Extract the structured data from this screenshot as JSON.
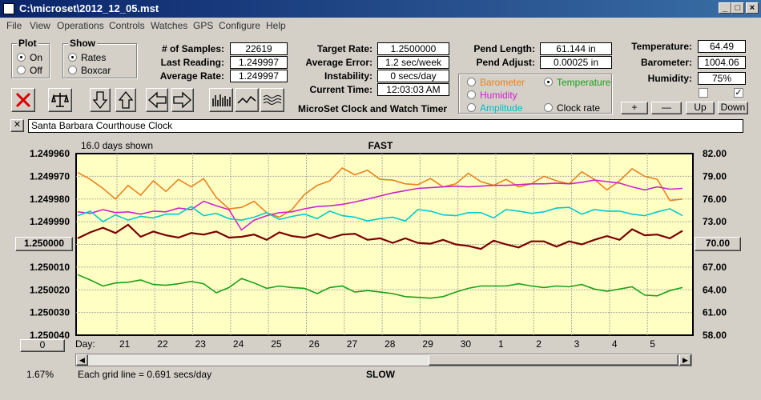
{
  "window": {
    "title": "C:\\microset\\2012_12_05.mst"
  },
  "menu": [
    "File",
    "View",
    "Operations",
    "Controls",
    "Watches",
    "GPS",
    "Configure",
    "Help"
  ],
  "plot_group": {
    "title": "Plot",
    "on": "On",
    "off": "Off",
    "selected": "On"
  },
  "show_group": {
    "title": "Show",
    "rates": "Rates",
    "boxcar": "Boxcar",
    "selected": "Rates"
  },
  "stats": {
    "samples_label": "# of Samples:",
    "samples": "22619",
    "last_label": "Last Reading:",
    "last": "1.249997",
    "avg_label": "Average Rate:",
    "avg": "1.249997",
    "target_label": "Target Rate:",
    "target": "1.2500000",
    "avgerr_label": "Average Error:",
    "avgerr": "1.2 sec/week",
    "instab_label": "Instability:",
    "instab": "0 secs/day",
    "time_label": "Current Time:",
    "time": "12:03:03 AM",
    "pend_len_label": "Pend Length:",
    "pend_len": "61.144 in",
    "pend_adj_label": "Pend Adjust:",
    "pend_adj": "0.00025 in",
    "temp_label": "Temperature:",
    "temp": "64.49",
    "baro_label": "Barometer:",
    "baro": "1004.06",
    "hum_label": "Humidity:",
    "hum": "75%"
  },
  "app_caption": "MicroSet Clock and Watch Timer",
  "sensor_select": {
    "barometer": "Barometer",
    "temperature": "Temperature",
    "humidity": "Humidity",
    "amplitude": "Amplitude",
    "clock_rate": "Clock rate",
    "selected": "Temperature",
    "colors": {
      "barometer": "#e8821e",
      "temperature": "#1aa01a",
      "humidity": "#cc22cc",
      "amplitude": "#00cccc",
      "clock_rate": "#000000"
    }
  },
  "sensor_buttons": {
    "plus": "+",
    "minus": "—",
    "up": "Up",
    "down": "Down"
  },
  "checkboxes": {
    "left": "",
    "right": "✓"
  },
  "clock_name": "Santa Barbara Courthouse Clock",
  "chart_data": {
    "type": "line",
    "title_top": "FAST",
    "title_bottom": "SLOW",
    "days_shown": "16.0 days shown",
    "grid_note": "Each grid line = 0.691 secs/day",
    "percent": "1.67%",
    "day_label": "Day:",
    "left_axis": [
      "1.249960",
      "1.249970",
      "1.249980",
      "1.249990",
      "1.250000",
      "1.250010",
      "1.250020",
      "1.250030",
      "1.250040"
    ],
    "right_axis": [
      "82.00",
      "79.00",
      "76.00",
      "73.00",
      "70.00",
      "67.00",
      "64.00",
      "61.00",
      "58.00"
    ],
    "left_center_button": "1.250000",
    "right_center_button": "70.00",
    "bottom_left_button": "0",
    "days": [
      "21",
      "22",
      "23",
      "24",
      "25",
      "26",
      "27",
      "28",
      "29",
      "30",
      "1",
      "2",
      "3",
      "4",
      "5"
    ],
    "rate_range": [
      1.24996,
      1.25004
    ],
    "temp_range": [
      58,
      82
    ],
    "series": [
      {
        "name": "Barometer",
        "color": "#e8821e",
        "values": [
          79.5,
          78.6,
          77.4,
          76.0,
          77.8,
          76.5,
          78.4,
          77.0,
          78.6,
          77.6,
          78.7,
          76.2,
          74.7,
          74.9,
          75.7,
          74.2,
          73.6,
          74.6,
          76.6,
          77.8,
          78.4,
          80.1,
          79.2,
          79.8,
          78.6,
          78.5,
          78.0,
          77.9,
          78.7,
          77.6,
          78.0,
          79.4,
          78.3,
          77.8,
          78.6,
          77.6,
          78.0,
          79.0,
          78.4,
          78.0,
          79.6,
          78.6,
          77.2,
          78.4,
          80.0,
          79.0,
          78.6,
          75.8,
          76.0
        ]
      },
      {
        "name": "Temperature",
        "color": "#1aa01a",
        "values": [
          66.0,
          65.3,
          64.5,
          64.9,
          65.0,
          65.3,
          64.7,
          64.6,
          64.8,
          65.1,
          64.8,
          63.6,
          64.3,
          65.5,
          64.9,
          64.2,
          64.5,
          64.3,
          64.2,
          63.5,
          64.3,
          64.5,
          63.7,
          63.9,
          63.7,
          63.5,
          63.1,
          63.0,
          62.9,
          63.1,
          63.7,
          64.2,
          64.5,
          64.5,
          64.5,
          64.8,
          64.5,
          64.3,
          64.5,
          64.4,
          64.7,
          64.1,
          63.8,
          64.1,
          64.4,
          63.3,
          63.2,
          63.9,
          64.3
        ]
      },
      {
        "name": "Humidity",
        "color": "#cc22cc",
        "values": [
          74.3,
          74.1,
          74.6,
          74.2,
          74.3,
          74.0,
          74.4,
          74.3,
          74.8,
          74.6,
          75.7,
          75.1,
          74.6,
          71.9,
          73.2,
          73.8,
          74.2,
          74.3,
          74.7,
          75.0,
          75.1,
          75.3,
          75.6,
          76.0,
          76.4,
          76.8,
          77.1,
          77.4,
          77.5,
          77.6,
          77.7,
          77.6,
          77.7,
          77.8,
          77.8,
          77.9,
          78.0,
          78.0,
          78.1,
          78.0,
          78.2,
          78.5,
          78.3,
          78.1,
          77.6,
          77.2,
          77.6,
          77.3,
          77.4
        ]
      },
      {
        "name": "Amplitude",
        "color": "#00cccc",
        "values": [
          73.8,
          74.4,
          73.0,
          73.9,
          73.2,
          73.7,
          73.5,
          74.0,
          74.0,
          75.0,
          73.8,
          74.1,
          73.4,
          73.2,
          73.6,
          74.2,
          73.3,
          73.7,
          74.0,
          73.4,
          74.4,
          73.8,
          73.6,
          73.1,
          73.4,
          73.6,
          73.1,
          74.6,
          74.4,
          73.9,
          73.8,
          74.2,
          74.2,
          73.5,
          74.6,
          74.4,
          74.1,
          74.3,
          74.8,
          74.9,
          74.0,
          74.6,
          74.4,
          74.4,
          74.0,
          73.8,
          74.3,
          74.7,
          73.8
        ]
      },
      {
        "name": "Clock rate",
        "color": "#7a0000",
        "values": [
          70.8,
          71.6,
          72.2,
          71.5,
          72.6,
          71.0,
          71.7,
          71.2,
          70.9,
          71.5,
          71.3,
          71.7,
          70.9,
          71.0,
          71.3,
          70.6,
          71.6,
          71.1,
          70.9,
          71.4,
          70.8,
          71.3,
          71.4,
          70.6,
          70.8,
          70.2,
          70.8,
          70.2,
          70.1,
          70.6,
          70.0,
          69.8,
          69.4,
          70.5,
          70.0,
          69.6,
          70.4,
          70.4,
          69.7,
          70.4,
          70.0,
          70.6,
          71.1,
          70.6,
          72.0,
          71.2,
          71.3,
          70.8,
          71.8
        ]
      }
    ]
  }
}
